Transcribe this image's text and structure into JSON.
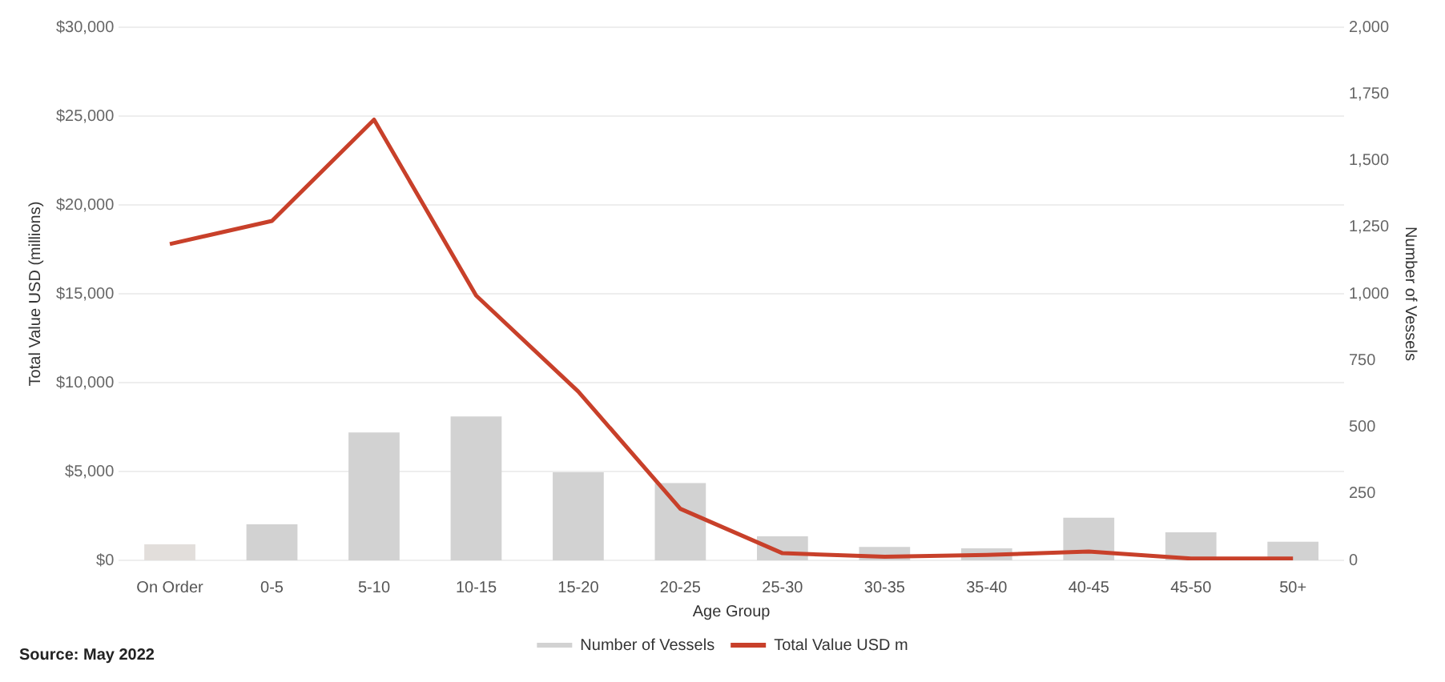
{
  "chart_data": {
    "type": "bar",
    "xlabel": "Age Group",
    "ylabel": "Total Value USD (millions)",
    "y2label": "Number of Vessels",
    "categories": [
      "On Order",
      "0-5",
      "5-10",
      "10-15",
      "15-20",
      "20-25",
      "25-30",
      "30-35",
      "35-40",
      "40-45",
      "45-50",
      "50+"
    ],
    "series": [
      {
        "name": "Number of Vessels",
        "axis": "y2",
        "colors": [
          "#e2dedb",
          "#d2d2d2",
          "#d2d2d2",
          "#d2d2d2",
          "#d2d2d2",
          "#d2d2d2",
          "#d2d2d2",
          "#d2d2d2",
          "#d2d2d2",
          "#d2d2d2",
          "#d2d2d2",
          "#d2d2d2"
        ],
        "color": "#d2d2d2",
        "values": [
          60,
          135,
          480,
          540,
          330,
          290,
          90,
          50,
          45,
          160,
          105,
          70
        ]
      },
      {
        "name": "Total Value USD m",
        "type": "line",
        "axis": "y",
        "color": "#c8402a",
        "values": [
          17800,
          19100,
          24800,
          14900,
          9500,
          2900,
          400,
          200,
          300,
          500,
          100,
          100
        ]
      }
    ],
    "ylim": [
      0,
      30000
    ],
    "yticks": [
      {
        "value": 0,
        "label": "$0"
      },
      {
        "value": 5000,
        "label": "$5,000"
      },
      {
        "value": 10000,
        "label": "$10,000"
      },
      {
        "value": 15000,
        "label": "$15,000"
      },
      {
        "value": 20000,
        "label": "$20,000"
      },
      {
        "value": 25000,
        "label": "$25,000"
      },
      {
        "value": 30000,
        "label": "$30,000"
      }
    ],
    "y2lim": [
      0,
      2000
    ],
    "y2ticks": [
      0,
      250,
      500,
      750,
      {
        "value": 1000,
        "label": "1,000"
      },
      {
        "value": 1250,
        "label": "1,250"
      },
      {
        "value": 1500,
        "label": "1,500"
      },
      {
        "value": 1750,
        "label": "1,750"
      },
      {
        "value": 2000,
        "label": "2,000"
      }
    ],
    "grid": "y",
    "legend": "bottom",
    "marker": "none",
    "line_style": "solid",
    "annotations": [
      "Source: May 2022"
    ]
  }
}
